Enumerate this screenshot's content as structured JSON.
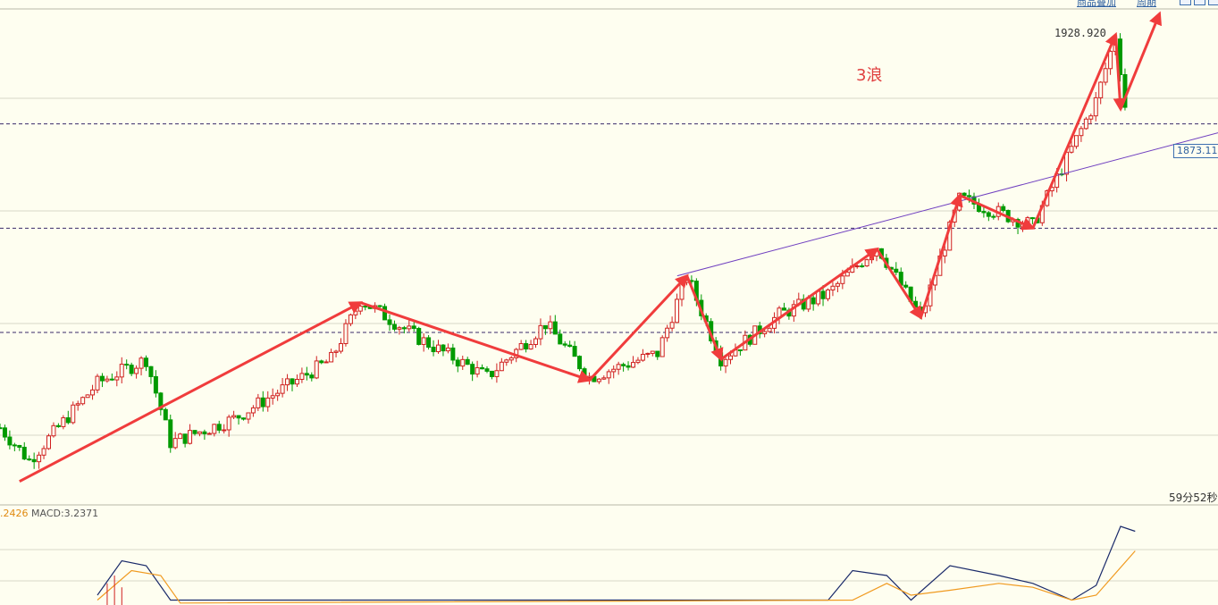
{
  "header": {
    "links": [
      "商品叠加",
      "周期"
    ]
  },
  "annotations": {
    "wave_label": "3浪",
    "high_label": "1928.920",
    "current_price": "1873.11",
    "countdown": "59分52秒"
  },
  "macd": {
    "legend_diff": ".2426",
    "legend_macd": "MACD:3.2371"
  },
  "colors": {
    "background": "#fefef0",
    "up_candle": "#d02020",
    "down_candle": "#009a00",
    "arrow": "#f03c3c",
    "trendline": "#7040c0",
    "dif_line": "#1a2a6a",
    "dea_line": "#f09a20"
  },
  "chart_data": {
    "type": "candlestick",
    "title": "",
    "xlabel": "",
    "ylabel": "",
    "ylim": [
      1770,
      1935
    ],
    "x_range": [
      0,
      250
    ],
    "horizontal_levels": [
      1897,
      1862,
      1827
    ],
    "trendline": {
      "points": [
        [
          139,
          1846
        ],
        [
          250,
          1894
        ]
      ]
    },
    "annotations": [
      {
        "type": "text",
        "text": "3浪",
        "x": 177,
        "y": 1908
      },
      {
        "type": "marker",
        "text": "1928.920",
        "x": 228,
        "y": 1928.9
      }
    ],
    "wave_arrows": [
      {
        "from": [
          4,
          1777
        ],
        "to": [
          74,
          1837
        ]
      },
      {
        "from": [
          74,
          1837
        ],
        "to": [
          121,
          1811
        ]
      },
      {
        "from": [
          121,
          1811
        ],
        "to": [
          141,
          1846
        ]
      },
      {
        "from": [
          141,
          1846
        ],
        "to": [
          148,
          1818
        ]
      },
      {
        "from": [
          148,
          1818
        ],
        "to": [
          180,
          1855
        ]
      },
      {
        "from": [
          180,
          1855
        ],
        "to": [
          189,
          1832
        ]
      },
      {
        "from": [
          189,
          1832
        ],
        "to": [
          197,
          1873
        ]
      },
      {
        "from": [
          197,
          1873
        ],
        "to": [
          212,
          1862
        ]
      },
      {
        "from": [
          212,
          1862
        ],
        "to": [
          229,
          1927
        ]
      },
      {
        "from": [
          229,
          1927
        ],
        "to": [
          230,
          1902
        ]
      },
      {
        "from": [
          230,
          1902
        ],
        "to": [
          238,
          1934
        ]
      }
    ],
    "waypoints": [
      [
        0,
        1795
      ],
      [
        6,
        1784
      ],
      [
        20,
        1810
      ],
      [
        30,
        1818
      ],
      [
        35,
        1790
      ],
      [
        48,
        1798
      ],
      [
        68,
        1818
      ],
      [
        74,
        1838
      ],
      [
        86,
        1825
      ],
      [
        100,
        1812
      ],
      [
        112,
        1830
      ],
      [
        121,
        1812
      ],
      [
        135,
        1820
      ],
      [
        141,
        1846
      ],
      [
        148,
        1818
      ],
      [
        160,
        1833
      ],
      [
        170,
        1840
      ],
      [
        180,
        1856
      ],
      [
        189,
        1832
      ],
      [
        197,
        1872
      ],
      [
        212,
        1863
      ],
      [
        225,
        1905
      ],
      [
        229,
        1927
      ],
      [
        231,
        1902
      ]
    ],
    "macd": {
      "dif_points": [
        [
          20,
          10
        ],
        [
          25,
          45
        ],
        [
          30,
          40
        ],
        [
          35,
          5
        ],
        [
          170,
          5
        ],
        [
          175,
          35
        ],
        [
          182,
          30
        ],
        [
          187,
          5
        ],
        [
          195,
          40
        ],
        [
          205,
          30
        ],
        [
          212,
          22
        ],
        [
          220,
          5
        ],
        [
          225,
          20
        ],
        [
          230,
          80
        ],
        [
          233,
          75
        ]
      ],
      "dea_points": [
        [
          20,
          5
        ],
        [
          27,
          35
        ],
        [
          33,
          30
        ],
        [
          37,
          2
        ],
        [
          175,
          5
        ],
        [
          182,
          22
        ],
        [
          187,
          10
        ],
        [
          195,
          15
        ],
        [
          205,
          22
        ],
        [
          212,
          18
        ],
        [
          220,
          5
        ],
        [
          225,
          10
        ],
        [
          233,
          55
        ]
      ]
    }
  }
}
